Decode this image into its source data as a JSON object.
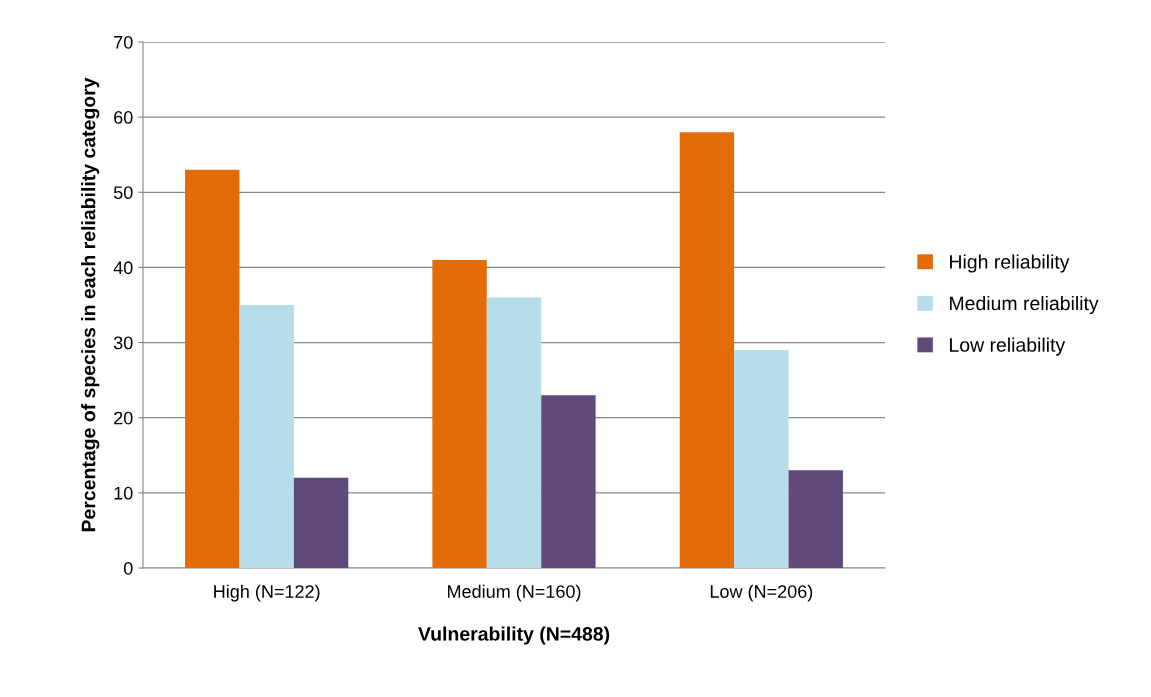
{
  "chart_data": {
    "type": "bar",
    "categories": [
      "High (N=122)",
      "Medium (N=160)",
      "Low (N=206)"
    ],
    "series": [
      {
        "name": "High reliability",
        "color": "#e36c09",
        "values": [
          53,
          41,
          58
        ]
      },
      {
        "name": "Medium reliability",
        "color": "#b7dde8",
        "values": [
          35,
          36,
          29
        ]
      },
      {
        "name": "Low reliability",
        "color": "#604a7b",
        "values": [
          12,
          23,
          13
        ]
      }
    ],
    "xlabel": "Vulnerability (N=488)",
    "ylabel": "Percentage of species in each reliability category",
    "ylim": [
      0,
      70
    ],
    "yticks": [
      0,
      10,
      20,
      30,
      40,
      50,
      60,
      70
    ],
    "grid": "y",
    "legend": "right"
  }
}
